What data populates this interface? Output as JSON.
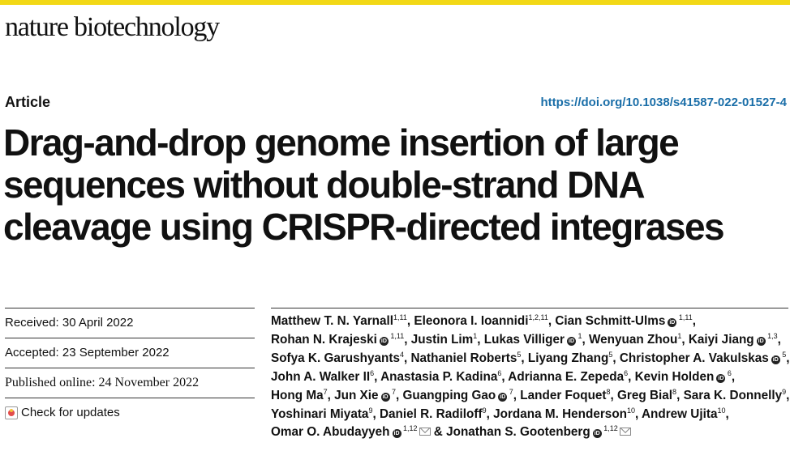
{
  "colors": {
    "top_bar": "#f2d816",
    "doi_link": "#1a6ea8",
    "text": "#111111"
  },
  "header": {
    "journal_name": "nature biotechnology",
    "article_type": "Article",
    "doi": "https://doi.org/10.1038/s41587-022-01527-4"
  },
  "title_lines": [
    "Drag-and-drop genome insertion of large",
    "sequences without double-strand DNA",
    "cleavage using CRISPR-directed integrases"
  ],
  "meta": {
    "received": "Received: 30 April 2022",
    "accepted": "Accepted: 23 September 2022",
    "published": "Published online: 24 November 2022",
    "check_updates": "Check for updates"
  },
  "icons": {
    "orcid": "orcid-icon",
    "email": "mail-icon",
    "updates": "check-updates-icon"
  },
  "authors": [
    {
      "name": "Matthew T. N. Yarnall",
      "aff": "1,11",
      "orcid": false,
      "email": false,
      "sep": ","
    },
    {
      "name": "Eleonora I. Ioannidi",
      "aff": "1,2,11",
      "orcid": false,
      "email": false,
      "sep": ","
    },
    {
      "name": "Cian Schmitt-Ulms",
      "aff": "1,11",
      "orcid": true,
      "email": false,
      "sep": ","
    },
    {
      "name": "Rohan N. Krajeski",
      "aff": "1,11",
      "orcid": true,
      "email": false,
      "sep": ","
    },
    {
      "name": "Justin Lim",
      "aff": "1",
      "orcid": false,
      "email": false,
      "sep": ","
    },
    {
      "name": "Lukas Villiger",
      "aff": "1",
      "orcid": true,
      "email": false,
      "sep": ","
    },
    {
      "name": "Wenyuan Zhou",
      "aff": "1",
      "orcid": false,
      "email": false,
      "sep": ","
    },
    {
      "name": "Kaiyi Jiang",
      "aff": "1,3",
      "orcid": true,
      "email": false,
      "sep": ","
    },
    {
      "name": "Sofya K. Garushyants",
      "aff": "4",
      "orcid": false,
      "email": false,
      "sep": ","
    },
    {
      "name": "Nathaniel Roberts",
      "aff": "5",
      "orcid": false,
      "email": false,
      "sep": ","
    },
    {
      "name": "Liyang Zhang",
      "aff": "5",
      "orcid": false,
      "email": false,
      "sep": ","
    },
    {
      "name": "Christopher A. Vakulskas",
      "aff": "5",
      "orcid": true,
      "email": false,
      "sep": ","
    },
    {
      "name": "John A. Walker II",
      "aff": "6",
      "orcid": false,
      "email": false,
      "sep": ","
    },
    {
      "name": "Anastasia P. Kadina",
      "aff": "6",
      "orcid": false,
      "email": false,
      "sep": ","
    },
    {
      "name": "Adrianna E. Zepeda",
      "aff": "6",
      "orcid": false,
      "email": false,
      "sep": ","
    },
    {
      "name": "Kevin Holden",
      "aff": "6",
      "orcid": true,
      "email": false,
      "sep": ","
    },
    {
      "name": "Hong Ma",
      "aff": "7",
      "orcid": false,
      "email": false,
      "sep": ","
    },
    {
      "name": "Jun Xie",
      "aff": "7",
      "orcid": true,
      "email": false,
      "sep": ","
    },
    {
      "name": "Guangping Gao",
      "aff": "7",
      "orcid": true,
      "email": false,
      "sep": ","
    },
    {
      "name": "Lander Foquet",
      "aff": "8",
      "orcid": false,
      "email": false,
      "sep": ","
    },
    {
      "name": "Greg Bial",
      "aff": "8",
      "orcid": false,
      "email": false,
      "sep": ","
    },
    {
      "name": "Sara K. Donnelly",
      "aff": "9",
      "orcid": false,
      "email": false,
      "sep": ","
    },
    {
      "name": "Yoshinari Miyata",
      "aff": "9",
      "orcid": false,
      "email": false,
      "sep": ","
    },
    {
      "name": "Daniel R. Radiloff",
      "aff": "9",
      "orcid": false,
      "email": false,
      "sep": ","
    },
    {
      "name": "Jordana M. Henderson",
      "aff": "10",
      "orcid": false,
      "email": false,
      "sep": ","
    },
    {
      "name": "Andrew Ujita",
      "aff": "10",
      "orcid": false,
      "email": false,
      "sep": ","
    },
    {
      "name": "Omar O. Abudayyeh",
      "aff": "1,12",
      "orcid": true,
      "email": true,
      "sep": " &"
    },
    {
      "name": "Jonathan S. Gootenberg",
      "aff": "1,12",
      "orcid": true,
      "email": true,
      "sep": ""
    }
  ]
}
